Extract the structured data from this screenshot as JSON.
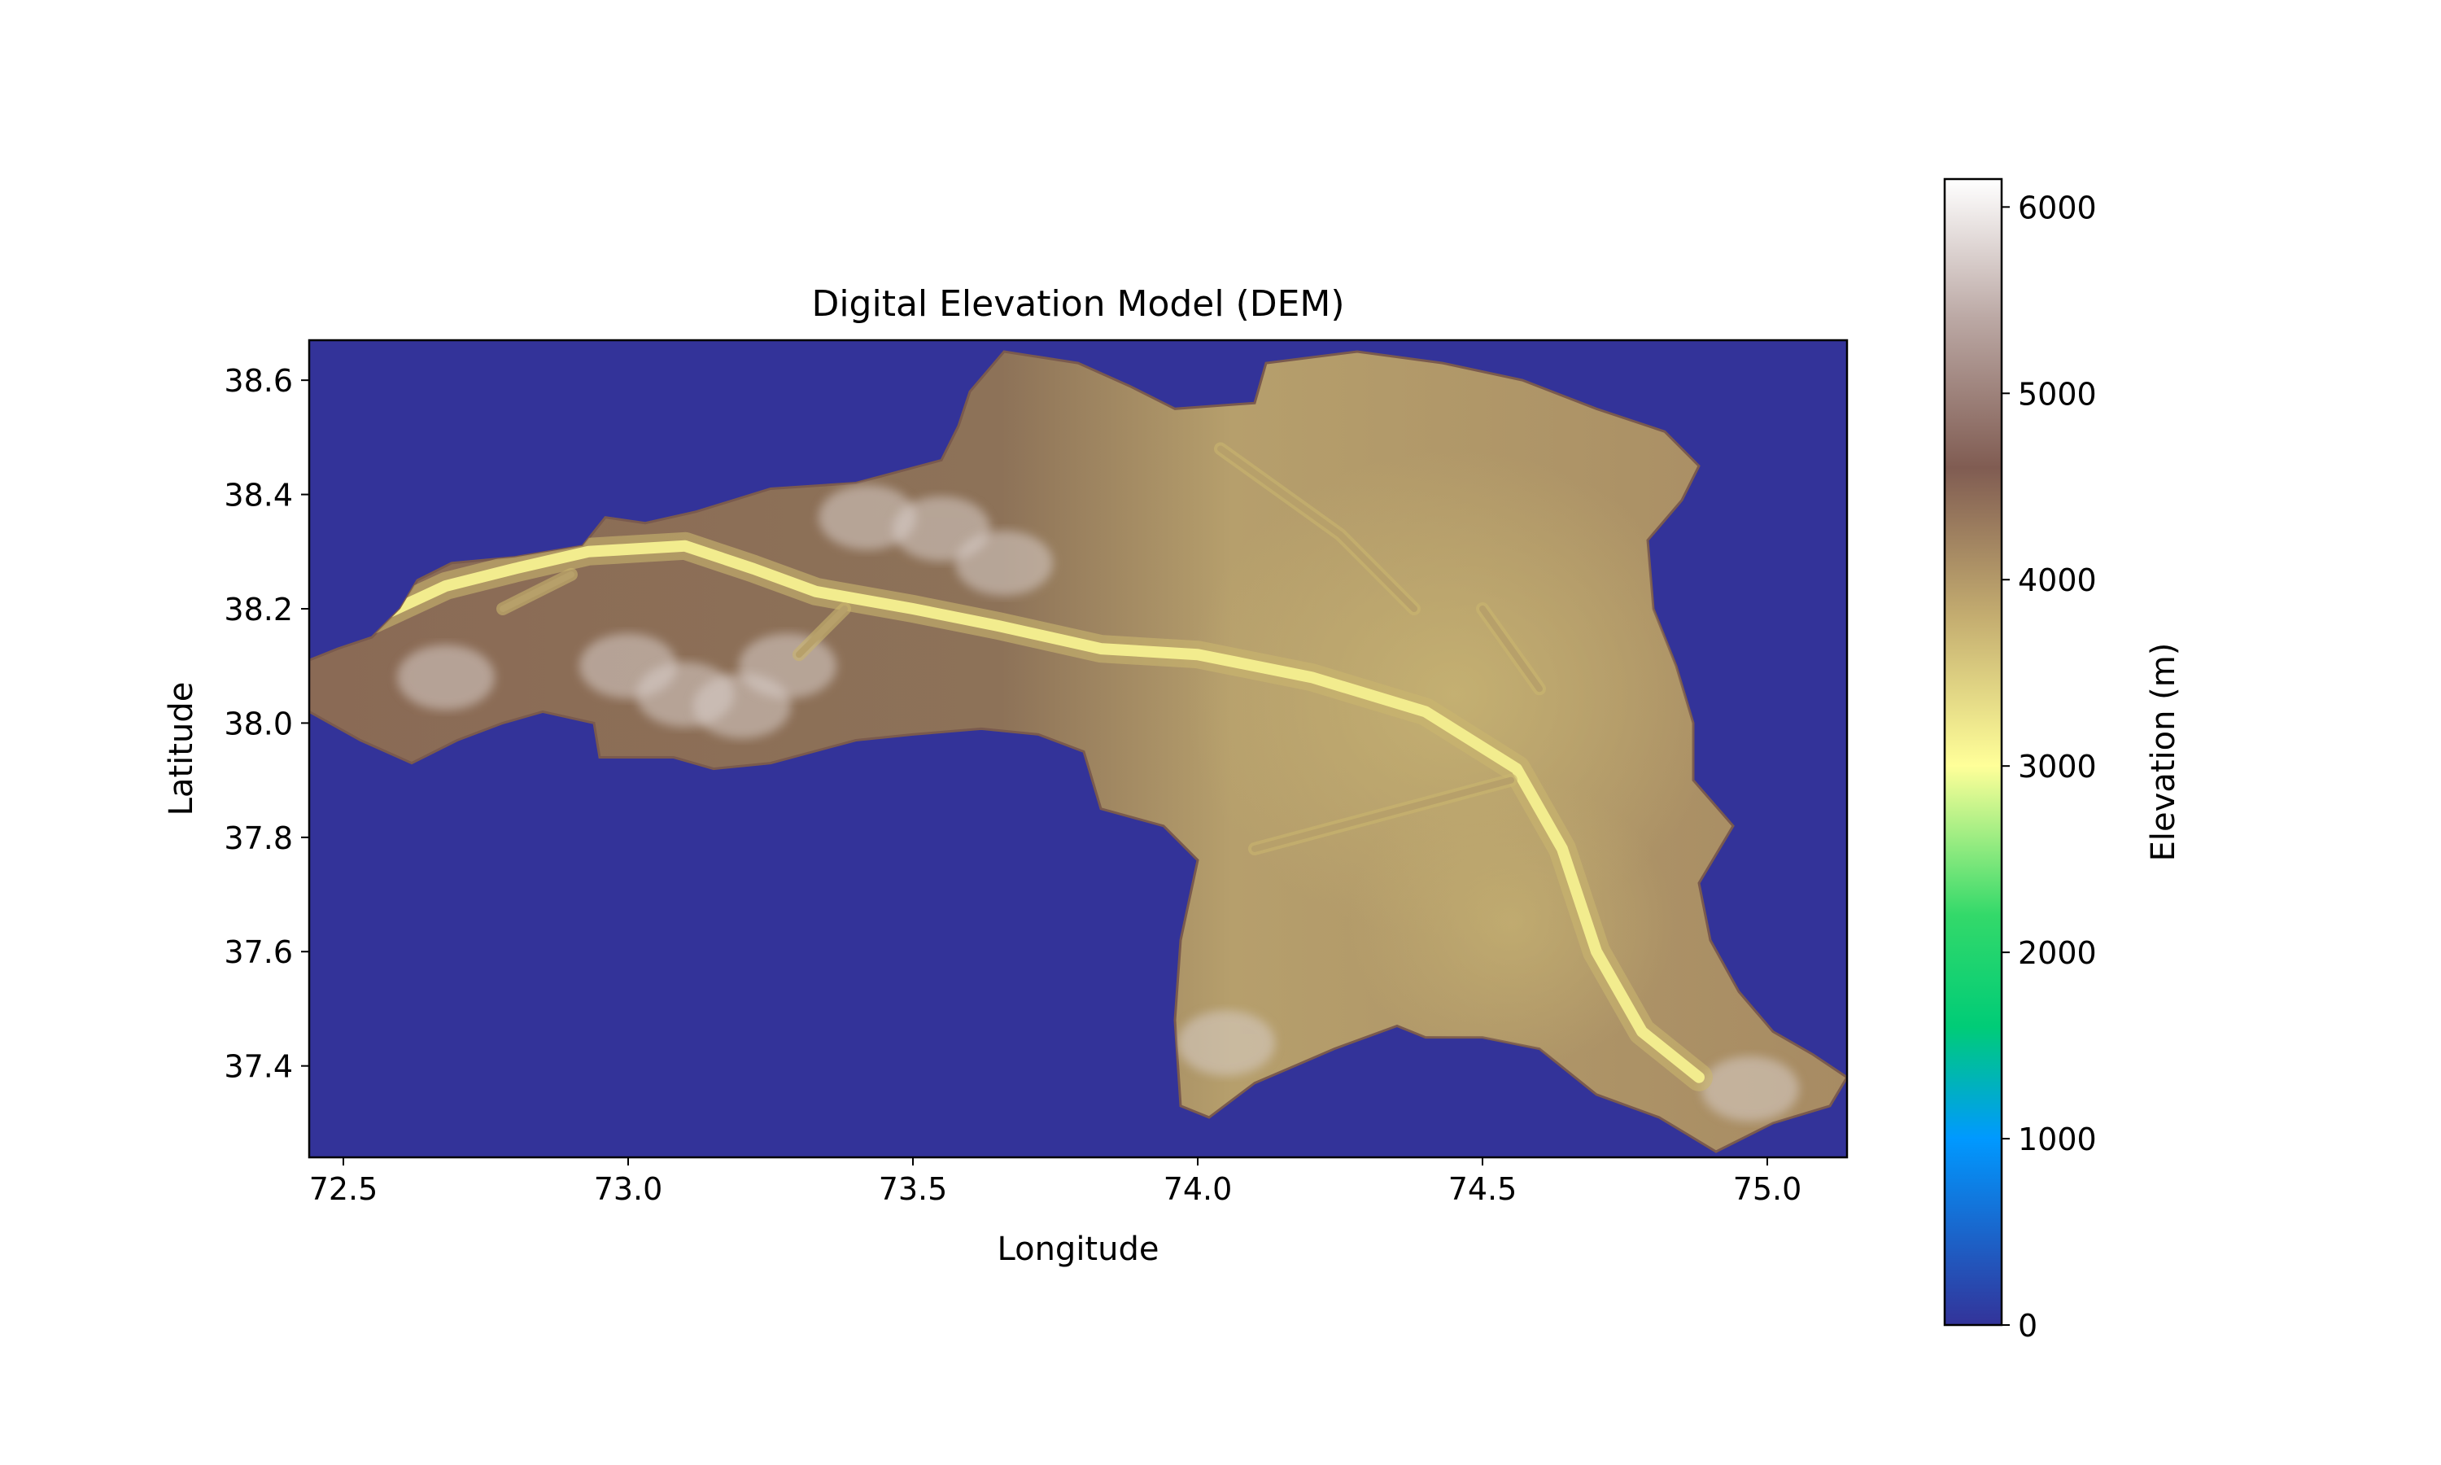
{
  "chart_data": {
    "type": "heatmap",
    "title": "Digital Elevation Model (DEM)",
    "xlabel": "Longitude",
    "ylabel": "Latitude",
    "xlim": [
      72.44,
      75.14
    ],
    "ylim": [
      37.24,
      38.67
    ],
    "xticks": [
      72.5,
      73.0,
      73.5,
      74.0,
      74.5,
      75.0
    ],
    "xtick_labels": [
      "72.5",
      "73.0",
      "73.5",
      "74.0",
      "74.5",
      "75.0"
    ],
    "yticks": [
      37.4,
      37.6,
      37.8,
      38.0,
      38.2,
      38.4,
      38.6
    ],
    "ytick_labels": [
      "37.4",
      "37.6",
      "37.8",
      "38.0",
      "38.2",
      "38.4",
      "38.6"
    ],
    "grid": false,
    "background_value": 0,
    "colormap": "terrain",
    "colorbar": {
      "label": "Elevation (m)",
      "range": [
        0,
        6150
      ],
      "ticks": [
        0,
        1000,
        2000,
        3000,
        4000,
        5000,
        6000
      ],
      "tick_labels": [
        "0",
        "1000",
        "2000",
        "3000",
        "4000",
        "5000",
        "6000"
      ],
      "stops": [
        {
          "value": 0,
          "color": "#333399"
        },
        {
          "value": 500,
          "color": "#1a66cc"
        },
        {
          "value": 1000,
          "color": "#0099ff"
        },
        {
          "value": 1600,
          "color": "#00cc77"
        },
        {
          "value": 2200,
          "color": "#33d96a"
        },
        {
          "value": 3000,
          "color": "#ffff99"
        },
        {
          "value": 3800,
          "color": "#c4ad70"
        },
        {
          "value": 4600,
          "color": "#805c52"
        },
        {
          "value": 5400,
          "color": "#bba8a4"
        },
        {
          "value": 6150,
          "color": "#ffffff"
        }
      ]
    },
    "region_outline_lonlat": [
      [
        72.44,
        38.11
      ],
      [
        72.49,
        38.13
      ],
      [
        72.55,
        38.15
      ],
      [
        72.6,
        38.2
      ],
      [
        72.63,
        38.25
      ],
      [
        72.69,
        38.28
      ],
      [
        72.8,
        38.29
      ],
      [
        72.92,
        38.31
      ],
      [
        72.96,
        38.36
      ],
      [
        73.03,
        38.35
      ],
      [
        73.12,
        38.37
      ],
      [
        73.25,
        38.41
      ],
      [
        73.4,
        38.42
      ],
      [
        73.55,
        38.46
      ],
      [
        73.58,
        38.52
      ],
      [
        73.6,
        38.58
      ],
      [
        73.66,
        38.65
      ],
      [
        73.79,
        38.63
      ],
      [
        73.88,
        38.59
      ],
      [
        73.96,
        38.55
      ],
      [
        74.1,
        38.56
      ],
      [
        74.12,
        38.63
      ],
      [
        74.28,
        38.65
      ],
      [
        74.43,
        38.63
      ],
      [
        74.57,
        38.6
      ],
      [
        74.7,
        38.55
      ],
      [
        74.82,
        38.51
      ],
      [
        74.88,
        38.45
      ],
      [
        74.85,
        38.39
      ],
      [
        74.79,
        38.32
      ],
      [
        74.8,
        38.2
      ],
      [
        74.84,
        38.1
      ],
      [
        74.87,
        38.0
      ],
      [
        74.87,
        37.9
      ],
      [
        74.94,
        37.82
      ],
      [
        74.88,
        37.72
      ],
      [
        74.9,
        37.62
      ],
      [
        74.95,
        37.53
      ],
      [
        75.01,
        37.46
      ],
      [
        75.08,
        37.42
      ],
      [
        75.14,
        37.38
      ],
      [
        75.11,
        37.33
      ],
      [
        75.01,
        37.3
      ],
      [
        74.91,
        37.25
      ],
      [
        74.86,
        37.28
      ],
      [
        74.81,
        37.31
      ],
      [
        74.7,
        37.35
      ],
      [
        74.6,
        37.43
      ],
      [
        74.5,
        37.45
      ],
      [
        74.4,
        37.45
      ],
      [
        74.35,
        37.47
      ],
      [
        74.24,
        37.43
      ],
      [
        74.17,
        37.4
      ],
      [
        74.1,
        37.37
      ],
      [
        74.02,
        37.31
      ],
      [
        73.97,
        37.33
      ],
      [
        73.96,
        37.48
      ],
      [
        73.97,
        37.62
      ],
      [
        74.0,
        37.76
      ],
      [
        73.94,
        37.82
      ],
      [
        73.83,
        37.85
      ],
      [
        73.8,
        37.95
      ],
      [
        73.72,
        37.98
      ],
      [
        73.62,
        37.99
      ],
      [
        73.5,
        37.98
      ],
      [
        73.4,
        37.97
      ],
      [
        73.25,
        37.93
      ],
      [
        73.15,
        37.92
      ],
      [
        73.08,
        37.94
      ],
      [
        72.95,
        37.94
      ],
      [
        72.94,
        38.0
      ],
      [
        72.85,
        38.02
      ],
      [
        72.78,
        38.0
      ],
      [
        72.7,
        37.97
      ],
      [
        72.62,
        37.93
      ],
      [
        72.53,
        37.97
      ],
      [
        72.44,
        38.02
      ]
    ],
    "valley_lines_lonlat": [
      [
        [
          72.55,
          38.18
        ],
        [
          72.68,
          38.24
        ],
        [
          72.8,
          38.27
        ],
        [
          72.93,
          38.3
        ],
        [
          73.1,
          38.31
        ],
        [
          73.22,
          38.27
        ],
        [
          73.33,
          38.23
        ],
        [
          73.5,
          38.2
        ],
        [
          73.65,
          38.17
        ],
        [
          73.83,
          38.13
        ],
        [
          74.0,
          38.12
        ],
        [
          74.2,
          38.08
        ],
        [
          74.4,
          38.02
        ],
        [
          74.56,
          37.92
        ],
        [
          74.64,
          37.78
        ],
        [
          74.7,
          37.6
        ],
        [
          74.78,
          37.46
        ],
        [
          74.88,
          37.38
        ]
      ],
      [
        [
          72.78,
          38.2
        ],
        [
          72.9,
          38.26
        ]
      ],
      [
        [
          73.3,
          38.12
        ],
        [
          73.38,
          38.2
        ]
      ],
      [
        [
          74.04,
          38.48
        ],
        [
          74.25,
          38.33
        ],
        [
          74.38,
          38.2
        ]
      ],
      [
        [
          74.1,
          37.78
        ],
        [
          74.4,
          37.86
        ],
        [
          74.55,
          37.9
        ]
      ],
      [
        [
          74.5,
          38.2
        ],
        [
          74.6,
          38.06
        ]
      ]
    ],
    "summits_lonlat": [
      [
        73.0,
        38.1
      ],
      [
        73.1,
        38.05
      ],
      [
        73.42,
        38.36
      ],
      [
        73.55,
        38.34
      ],
      [
        73.66,
        38.28
      ],
      [
        72.68,
        38.08
      ],
      [
        73.2,
        38.03
      ],
      [
        74.05,
        37.44
      ],
      [
        74.97,
        37.36
      ],
      [
        73.28,
        38.1
      ]
    ]
  }
}
